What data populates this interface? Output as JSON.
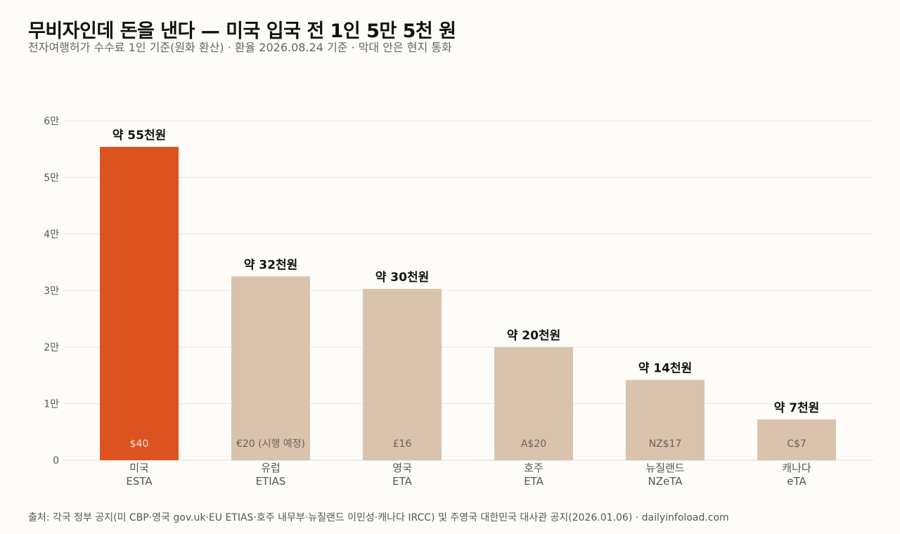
{
  "title": "무비자인데 돈을 낸다 — 미국 입국 전 1인 5만 5천 원",
  "subtitle": "전자여행허가 수수료 1인 기준(원화 환산) · 환율 2026.08.24 기준 · 막대 안은 현지 통화",
  "source": "출처: 각국 정부 공지(미 CBP·영국 gov.uk·EU ETIAS·호주 내무부·뉴질랜드 이민성·캐나다 IRCC) 및 주영국 대한민국 대사관 공지(2026.01.06) · dailyinfoload.com",
  "colors": {
    "highlight": "#dc531f",
    "default": "#d9c3ad",
    "grid": "#e8e6e1",
    "highlight_inbar_text": "#f4e4dc",
    "default_inbar_text": "#6b6259"
  },
  "chart_data": {
    "type": "bar",
    "categories": [
      "미국\nESTA",
      "유럽\nETIAS",
      "영국\nETA",
      "호주\nETA",
      "뉴질랜드\nNZeTA",
      "캐나다\neTA"
    ],
    "category_lines": [
      [
        "미국",
        "ESTA"
      ],
      [
        "유럽",
        "ETIAS"
      ],
      [
        "영국",
        "ETA"
      ],
      [
        "호주",
        "ETA"
      ],
      [
        "뉴질랜드",
        "NZeTA"
      ],
      [
        "캐나다",
        "eTA"
      ]
    ],
    "values": [
      55400,
      32500,
      30300,
      20000,
      14200,
      7200
    ],
    "value_labels": [
      "약 55천원",
      "약 32천원",
      "약 30천원",
      "약 20천원",
      "약 14천원",
      "약 7천원"
    ],
    "local_currency": [
      "$40",
      "€20 (시행 예정)",
      "£16",
      "A$20",
      "NZ$17",
      "C$7"
    ],
    "highlight_index": 0,
    "ylim": [
      0,
      60000
    ],
    "yticks": [
      0,
      10000,
      20000,
      30000,
      40000,
      50000,
      60000
    ],
    "ytick_labels": [
      "0",
      "1만",
      "2만",
      "3만",
      "4만",
      "5만",
      "6만"
    ],
    "grid": true,
    "xlabel": "",
    "ylabel": ""
  }
}
